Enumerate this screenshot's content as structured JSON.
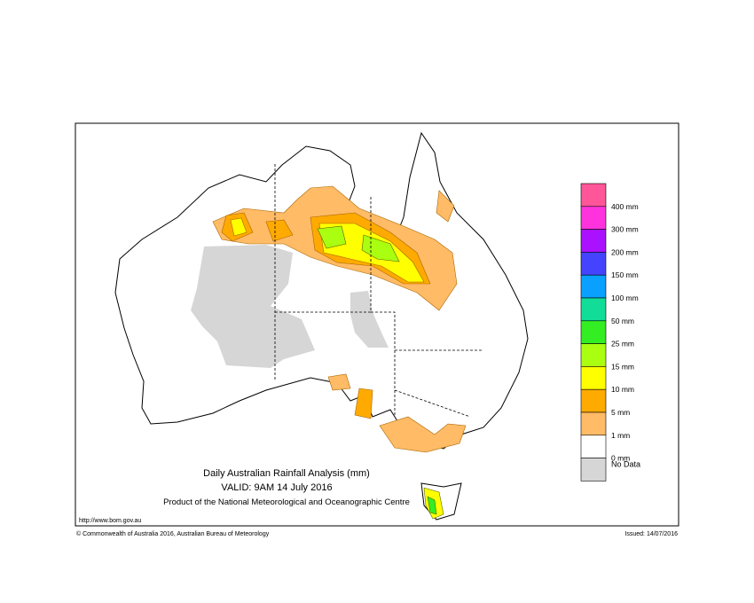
{
  "map": {
    "title": "Daily Australian Rainfall Analysis (mm)",
    "valid": "VALID: 9AM 14 July 2016",
    "product": "Product of the National Meteorological and Oceanographic Centre",
    "url": "http://www.bom.gov.au",
    "copyright": "© Commonwealth of Australia 2016, Australian Bureau of Meteorology",
    "issued": "Issued: 14/07/2016",
    "legend": {
      "colors": [
        "#ff5599",
        "#ff33dd",
        "#aa11ff",
        "#4444ff",
        "#0aa0ff",
        "#11dd99",
        "#33ee22",
        "#aaff11",
        "#ffff00",
        "#ffaa00",
        "#ffbb66",
        "#ffffff",
        "#d6d6d6"
      ],
      "labels": [
        "400 mm",
        "300 mm",
        "200 mm",
        "150 mm",
        "100 mm",
        "50 mm",
        "25 mm",
        "15 mm",
        "10 mm",
        "5 mm",
        "1 mm",
        "0 mm"
      ],
      "no_data": "No Data"
    }
  }
}
